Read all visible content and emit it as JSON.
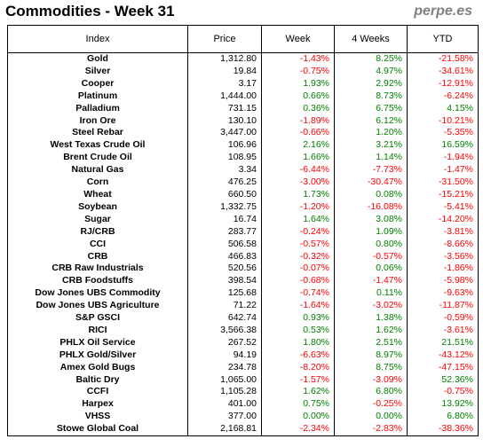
{
  "header": {
    "title": "Commodities - Week 31",
    "brand": "perpe.es"
  },
  "table": {
    "columns": [
      "Index",
      "Price",
      "Week",
      "4 Weeks",
      "YTD"
    ],
    "colors": {
      "positive": "#008000",
      "negative": "#ff0000"
    },
    "rows": [
      {
        "index": "Gold",
        "price": "1,312.80",
        "week": "-1.43%",
        "weeks4": "8.25%",
        "ytd": "-21.58%"
      },
      {
        "index": "Silver",
        "price": "19.84",
        "week": "-0.75%",
        "weeks4": "4.97%",
        "ytd": "-34.61%"
      },
      {
        "index": "Cooper",
        "price": "3.17",
        "week": "1.93%",
        "weeks4": "2.92%",
        "ytd": "-12.91%"
      },
      {
        "index": "Platinum",
        "price": "1,444.00",
        "week": "0.66%",
        "weeks4": "8.73%",
        "ytd": "-6.24%"
      },
      {
        "index": "Palladium",
        "price": "731.15",
        "week": "0.36%",
        "weeks4": "6.75%",
        "ytd": "4.15%"
      },
      {
        "index": "Iron Ore",
        "price": "130.10",
        "week": "-1.89%",
        "weeks4": "6.12%",
        "ytd": "-10.21%"
      },
      {
        "index": "Steel Rebar",
        "price": "3,447.00",
        "week": "-0.66%",
        "weeks4": "1.20%",
        "ytd": "-5.35%"
      },
      {
        "index": "West Texas Crude Oil",
        "price": "106.96",
        "week": "2.16%",
        "weeks4": "3.21%",
        "ytd": "16.59%"
      },
      {
        "index": "Brent Crude Oil",
        "price": "108.95",
        "week": "1.66%",
        "weeks4": "1.14%",
        "ytd": "-1.94%"
      },
      {
        "index": "Natural Gas",
        "price": "3.34",
        "week": "-6.44%",
        "weeks4": "-7.73%",
        "ytd": "-1.47%"
      },
      {
        "index": "Corn",
        "price": "476.25",
        "week": "-3.00%",
        "weeks4": "-30.47%",
        "ytd": "-31.50%"
      },
      {
        "index": "Wheat",
        "price": "660.50",
        "week": "1.73%",
        "weeks4": "0.08%",
        "ytd": "-15.21%"
      },
      {
        "index": "Soybean",
        "price": "1,332.75",
        "week": "-1.20%",
        "weeks4": "-16.08%",
        "ytd": "-5.41%"
      },
      {
        "index": "Sugar",
        "price": "16.74",
        "week": "1.64%",
        "weeks4": "3.08%",
        "ytd": "-14.20%"
      },
      {
        "index": "RJ/CRB",
        "price": "283.77",
        "week": "-0.24%",
        "weeks4": "1.09%",
        "ytd": "-3.81%"
      },
      {
        "index": "CCI",
        "price": "506.58",
        "week": "-0.57%",
        "weeks4": "0.80%",
        "ytd": "-8.66%"
      },
      {
        "index": "CRB",
        "price": "466.83",
        "week": "-0.32%",
        "weeks4": "-0.57%",
        "ytd": "-3.56%"
      },
      {
        "index": "CRB Raw Industrials",
        "price": "520.56",
        "week": "-0.07%",
        "weeks4": "0.06%",
        "ytd": "-1.86%"
      },
      {
        "index": "CRB Foodstuffs",
        "price": "398.54",
        "week": "-0.68%",
        "weeks4": "-1.47%",
        "ytd": "-5.98%"
      },
      {
        "index": "Dow Jones UBS Commodity",
        "price": "125.68",
        "week": "-0.74%",
        "weeks4": "0.11%",
        "ytd": "-9.63%"
      },
      {
        "index": "Dow Jones UBS Agriculture",
        "price": "71.22",
        "week": "-1.64%",
        "weeks4": "-3.02%",
        "ytd": "-11.87%"
      },
      {
        "index": "S&P GSCI",
        "price": "642.74",
        "week": "0.93%",
        "weeks4": "1.38%",
        "ytd": "-0.59%"
      },
      {
        "index": "RICI",
        "price": "3,566.38",
        "week": "0.53%",
        "weeks4": "1.62%",
        "ytd": "-3.61%"
      },
      {
        "index": "PHLX Oil Service",
        "price": "267.52",
        "week": "1.80%",
        "weeks4": "2.51%",
        "ytd": "21.51%"
      },
      {
        "index": "PHLX Gold/Silver",
        "price": "94.19",
        "week": "-6.63%",
        "weeks4": "8.97%",
        "ytd": "-43.12%"
      },
      {
        "index": "Amex Gold Bugs",
        "price": "234.78",
        "week": "-8.20%",
        "weeks4": "8.75%",
        "ytd": "-47.15%"
      },
      {
        "index": "Baltic Dry",
        "price": "1,065.00",
        "week": "-1.57%",
        "weeks4": "-3.09%",
        "ytd": "52.36%"
      },
      {
        "index": "CCFI",
        "price": "1,105.28",
        "week": "1.62%",
        "weeks4": "6.80%",
        "ytd": "-0.75%"
      },
      {
        "index": "Harpex",
        "price": "401.00",
        "week": "0.75%",
        "weeks4": "-0.25%",
        "ytd": "13.92%"
      },
      {
        "index": "VHSS",
        "price": "377.00",
        "week": "0.00%",
        "weeks4": "0.00%",
        "ytd": "6.80%"
      },
      {
        "index": "Stowe Global Coal",
        "price": "2,168.81",
        "week": "-2.34%",
        "weeks4": "-2.83%",
        "ytd": "-38.36%"
      }
    ]
  }
}
